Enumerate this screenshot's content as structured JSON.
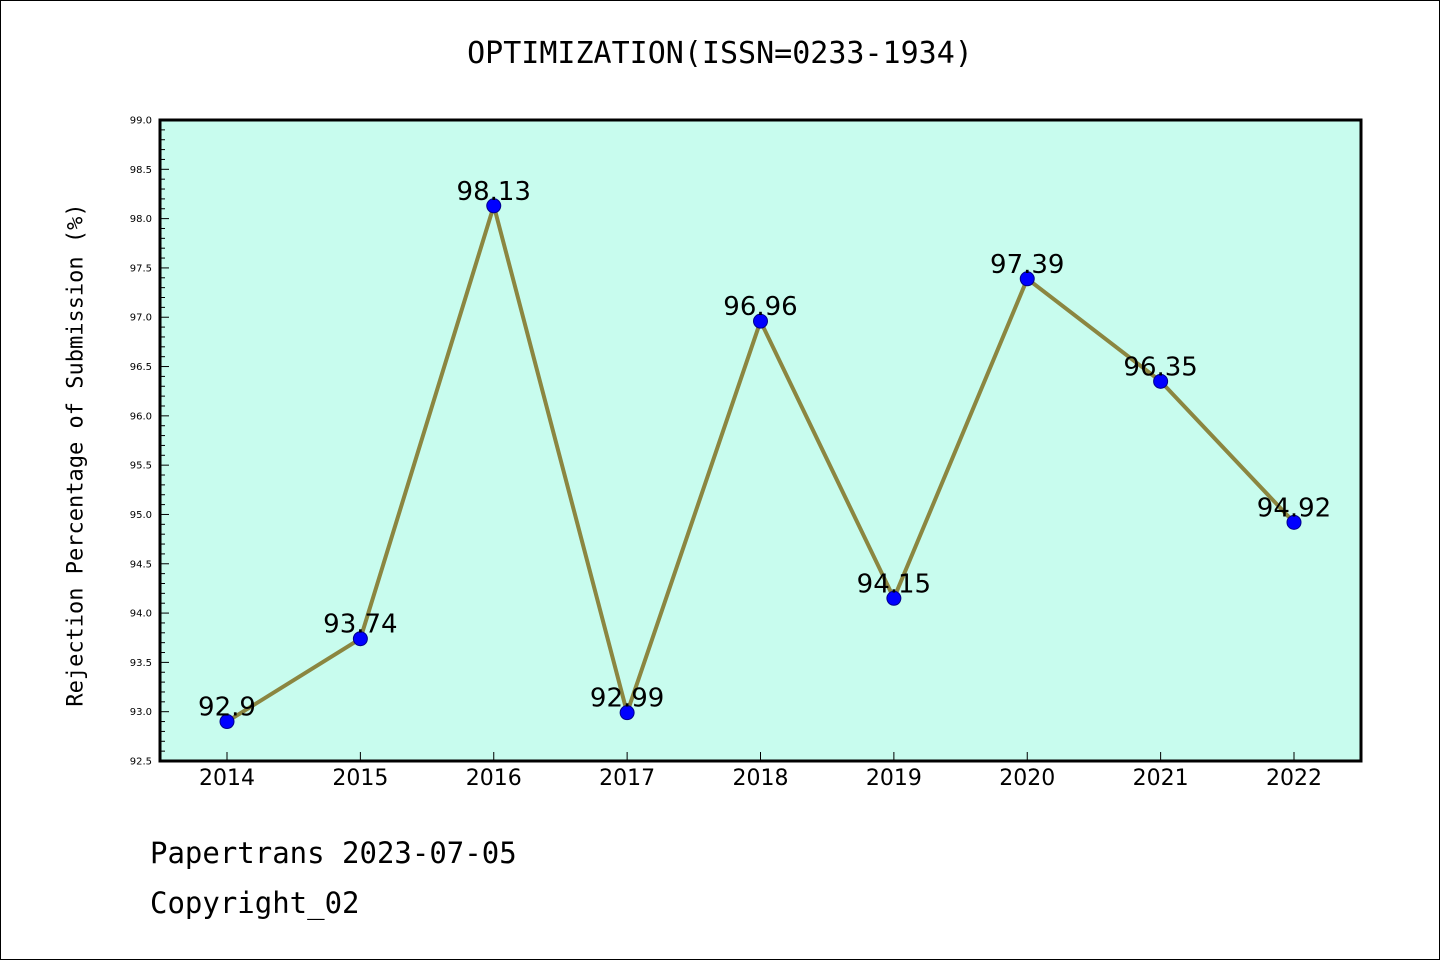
{
  "chart_data": {
    "type": "line",
    "title": "OPTIMIZATION(ISSN=0233-1934)",
    "xlabel": "",
    "ylabel": "Rejection Percentage of Submission (%)",
    "categories": [
      "2014",
      "2015",
      "2016",
      "2017",
      "2018",
      "2019",
      "2020",
      "2021",
      "2022"
    ],
    "values": [
      92.9,
      93.74,
      98.13,
      92.99,
      96.96,
      94.15,
      97.39,
      96.35,
      94.92
    ],
    "data_labels": [
      "92.9",
      "93.74",
      "98.13",
      "92.99",
      "96.96",
      "94.15",
      "97.39",
      "96.35",
      "94.92"
    ],
    "ylim": [
      92.5,
      99.0
    ],
    "yticks": [
      "92.5",
      "93.0",
      "93.5",
      "94.0",
      "94.5",
      "95.0",
      "95.5",
      "96.0",
      "96.5",
      "97.0",
      "97.5",
      "98.0",
      "98.5",
      "99.0"
    ],
    "grid": false,
    "legend": "none",
    "colors": {
      "plot_background": "#c8fcee",
      "line": "#8b8640",
      "marker": "#0000ff",
      "marker_edge": "#00008b"
    }
  },
  "footer": {
    "line1": "Papertrans 2023-07-05",
    "line2": "Copyright_02"
  }
}
